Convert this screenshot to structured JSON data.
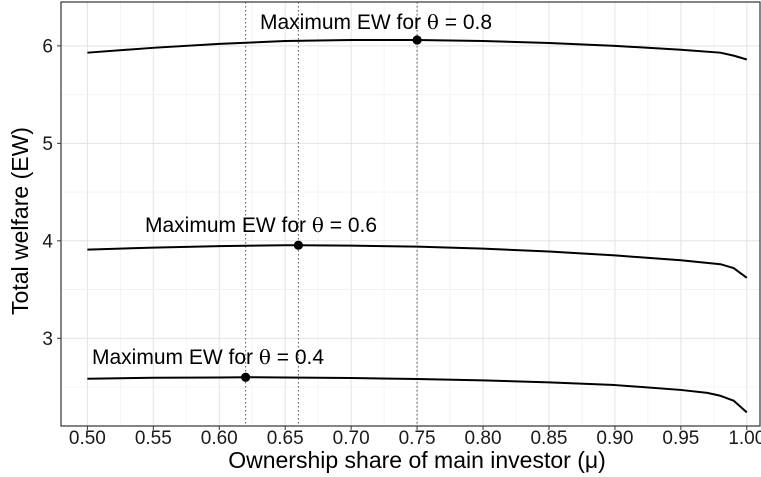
{
  "chart_data": {
    "type": "line",
    "xlabel": "Ownership share of main investor (μ)",
    "ylabel": "Total welfare (EW)",
    "xlim": [
      0.48,
      1.01
    ],
    "ylim": [
      2.1,
      6.45
    ],
    "x_ticks": [
      "0.50",
      "0.55",
      "0.60",
      "0.65",
      "0.70",
      "0.75",
      "0.80",
      "0.85",
      "0.90",
      "0.95",
      "1.00"
    ],
    "y_ticks": [
      "3",
      "4",
      "5",
      "6"
    ],
    "grid": true,
    "series": [
      {
        "theta": 0.8,
        "x": [
          0.5,
          0.55,
          0.6,
          0.65,
          0.7,
          0.75,
          0.8,
          0.85,
          0.9,
          0.95,
          0.98,
          0.99,
          1.0
        ],
        "y": [
          5.93,
          5.98,
          6.02,
          6.05,
          6.06,
          6.06,
          6.05,
          6.03,
          6.0,
          5.96,
          5.93,
          5.9,
          5.86
        ],
        "max_x": 0.75,
        "max_y": 6.06
      },
      {
        "theta": 0.6,
        "x": [
          0.5,
          0.55,
          0.6,
          0.65,
          0.66,
          0.7,
          0.75,
          0.8,
          0.85,
          0.9,
          0.95,
          0.98,
          0.99,
          1.0
        ],
        "y": [
          3.91,
          3.93,
          3.945,
          3.955,
          3.955,
          3.95,
          3.94,
          3.92,
          3.89,
          3.85,
          3.8,
          3.76,
          3.72,
          3.62
        ],
        "max_x": 0.66,
        "max_y": 3.955
      },
      {
        "theta": 0.4,
        "x": [
          0.5,
          0.55,
          0.6,
          0.62,
          0.65,
          0.7,
          0.75,
          0.8,
          0.85,
          0.9,
          0.95,
          0.97,
          0.98,
          0.99,
          1.0
        ],
        "y": [
          2.585,
          2.595,
          2.598,
          2.6,
          2.598,
          2.592,
          2.582,
          2.568,
          2.548,
          2.52,
          2.47,
          2.44,
          2.41,
          2.36,
          2.24
        ],
        "max_x": 0.62,
        "max_y": 2.6
      }
    ],
    "annotations": [
      {
        "prefix": "Maximum EW for ",
        "theta_symbol": "θ",
        "suffix": " = 0.8"
      },
      {
        "prefix": "Maximum EW for ",
        "theta_symbol": "θ",
        "suffix": " = 0.6"
      },
      {
        "prefix": "Maximum EW for ",
        "theta_symbol": "θ",
        "suffix": " = 0.4"
      }
    ],
    "colors": {
      "line": "#000000",
      "grid_major": "#e3e3e3",
      "grid_minor": "#f1f1f1",
      "panel_border": "#333333",
      "vline": "#555555"
    }
  }
}
